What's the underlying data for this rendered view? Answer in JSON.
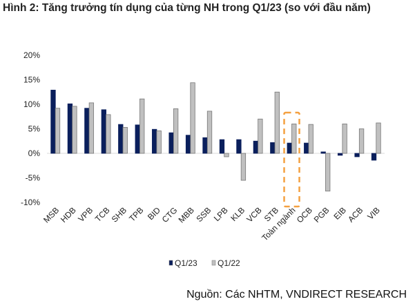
{
  "title": "Hình 2: Tăng trưởng tín dụng của từng NH trong Q1/23 (so với đầu năm)",
  "source": "Nguồn: Các NHTM, VNDIRECT RESEARCH",
  "chart_data": {
    "type": "bar",
    "title": "",
    "xlabel": "",
    "ylabel": "",
    "ylim": [
      -10,
      20
    ],
    "yticks": [
      "20%",
      "15%",
      "10%",
      "5%",
      "0%",
      "-5%",
      "-10%"
    ],
    "grid": false,
    "legend_position": "bottom",
    "highlighted_category": "Toàn ngành",
    "categories": [
      "MSB",
      "HDB",
      "VPB",
      "TCB",
      "SHB",
      "TPB",
      "BID",
      "CTG",
      "MBB",
      "SSB",
      "LPB",
      "KLB",
      "VCB",
      "STB",
      "Toàn ngành",
      "OCB",
      "PGB",
      "EIB",
      "ACB",
      "VIB"
    ],
    "series": [
      {
        "name": "Q1/23",
        "color": "#0a1f5c",
        "values": [
          12.9,
          10.1,
          9.2,
          8.9,
          5.9,
          5.8,
          4.9,
          4.2,
          3.7,
          3.2,
          2.8,
          2.8,
          2.5,
          2.2,
          2.1,
          2.1,
          0.3,
          -0.4,
          -0.7,
          -1.4
        ]
      },
      {
        "name": "Q1/22",
        "color": "#c0c0c0",
        "values": [
          9.2,
          9.6,
          10.3,
          7.9,
          5.3,
          11.1,
          4.6,
          9.1,
          14.4,
          8.6,
          -0.7,
          -5.5,
          7.0,
          12.5,
          6.0,
          5.9,
          -7.7,
          6.0,
          5.0,
          6.2
        ]
      }
    ],
    "highlight_color": "#f4a040"
  }
}
